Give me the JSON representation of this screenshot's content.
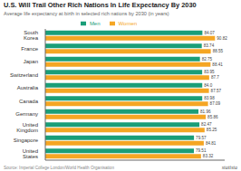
{
  "chart_data": {
    "type": "bar",
    "title": "U.S. Will Trail Other Rich Nations In Life Expectancy By 2030",
    "subtitle": "Average life expectancy at birth in selected rich nations by 2030 (in years)",
    "annotations": [
      "Source: Imperial College London/World Health Organisation",
      "statista"
    ],
    "orientation": "horizontal",
    "categories": [
      "South Korea",
      "France",
      "Japan",
      "Switzerland",
      "Australia",
      "Canada",
      "Germany",
      "United Kingdom",
      "Singapore",
      "United States"
    ],
    "series": [
      {
        "name": "Men",
        "color": "#1a9e78",
        "values": [
          84.07,
          83.74,
          82.75,
          83.95,
          84.0,
          83.98,
          81.96,
          82.47,
          79.57,
          79.51
        ],
        "value_labels": [
          "84.07",
          "83.74",
          "82.75",
          "83.95",
          "84.0",
          "83.98",
          "81.96",
          "82.47",
          "79.57",
          "79.51"
        ]
      },
      {
        "name": "Women",
        "color": "#f5a623",
        "values": [
          90.82,
          88.55,
          88.41,
          87.7,
          87.57,
          87.09,
          85.86,
          85.25,
          84.81,
          83.32
        ],
        "value_labels": [
          "90.82",
          "88.55",
          "88.41",
          "87.7",
          "87.57",
          "87.09",
          "85.86",
          "85.25",
          "84.81",
          "83.32"
        ]
      }
    ],
    "xlim": [
      0,
      96
    ],
    "data_labels": true,
    "tick_labels": "y",
    "legend": "top",
    "grid": false
  }
}
